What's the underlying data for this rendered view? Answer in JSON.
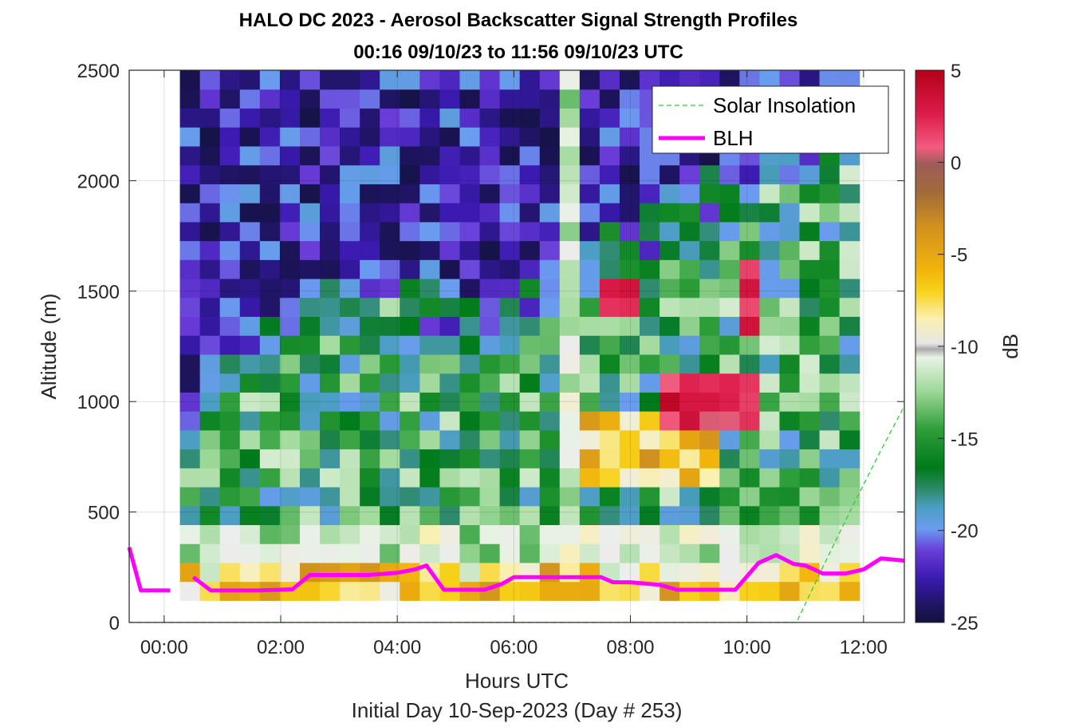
{
  "chart_data": {
    "type": "heatmap",
    "title": "HALO DC 2023 - Aerosol Backscatter Signal Strength Profiles",
    "subtitle": "00:16 09/10/23 to 11:56 09/10/23  UTC",
    "xlabel": "Hours UTC",
    "xlabel2": "Initial Day 10-Sep-2023 (Day # 253)",
    "ylabel": "Altitude (m)",
    "colorbar_label": "dB",
    "xlim": [
      -0.6,
      12.7
    ],
    "ylim": [
      0,
      2500
    ],
    "clim": [
      -25,
      5
    ],
    "x_ticks": [
      0,
      2,
      4,
      6,
      8,
      10,
      12
    ],
    "x_tick_labels": [
      "00:00",
      "02:00",
      "04:00",
      "06:00",
      "08:00",
      "10:00",
      "12:00"
    ],
    "y_ticks": [
      0,
      500,
      1000,
      1500,
      2000,
      2500
    ],
    "y_tick_labels": [
      "0",
      "500",
      "1000",
      "1500",
      "2000",
      "2500"
    ],
    "cbar_ticks": [
      5,
      0,
      -5,
      -10,
      -15,
      -20,
      -25
    ],
    "cbar_tick_labels": [
      "5",
      "0",
      "-5",
      "-10",
      "-15",
      "-20",
      "-25"
    ],
    "grid": true,
    "legend_position": "top-right",
    "legend": [
      "Solar Insolation",
      "BLH"
    ],
    "heatmap_extent": {
      "x_start": 0.27,
      "x_end": 11.93,
      "y_start": 100,
      "y_end": 2500
    },
    "heatmap_cols": 34,
    "heatmap_rows": 28,
    "regions_dB": [
      {
        "name": "upper clean air",
        "approx_dB": -22
      },
      {
        "name": "mixed layer / residual layer",
        "approx_dB": -15
      },
      {
        "name": "surface layer",
        "approx_dB": -7
      },
      {
        "name": "cloud / strong layer 08:30-10:00 near 1000 m",
        "approx_dB": 3
      }
    ],
    "series": [
      {
        "name": "BLH",
        "color": "#ff00ff",
        "points": [
          [
            -0.6,
            340
          ],
          [
            -0.4,
            145
          ],
          [
            0.1,
            145
          ],
          [
            0.5,
            205
          ],
          [
            0.8,
            145
          ],
          [
            1.2,
            145
          ],
          [
            1.6,
            145
          ],
          [
            2.0,
            148
          ],
          [
            2.2,
            150
          ],
          [
            2.5,
            215
          ],
          [
            3.0,
            215
          ],
          [
            3.5,
            215
          ],
          [
            4.0,
            225
          ],
          [
            4.3,
            240
          ],
          [
            4.5,
            258
          ],
          [
            4.8,
            148
          ],
          [
            5.5,
            148
          ],
          [
            5.8,
            175
          ],
          [
            6.0,
            205
          ],
          [
            6.5,
            205
          ],
          [
            7.0,
            205
          ],
          [
            7.5,
            205
          ],
          [
            7.7,
            182
          ],
          [
            8.0,
            182
          ],
          [
            8.5,
            170
          ],
          [
            8.8,
            148
          ],
          [
            9.5,
            148
          ],
          [
            9.8,
            148
          ],
          [
            10.2,
            270
          ],
          [
            10.5,
            305
          ],
          [
            10.8,
            265
          ],
          [
            11.0,
            258
          ],
          [
            11.3,
            222
          ],
          [
            11.7,
            222
          ],
          [
            12.0,
            240
          ],
          [
            12.3,
            290
          ],
          [
            12.7,
            280
          ]
        ]
      },
      {
        "name": "Solar Insolation",
        "color": "#33cc33",
        "points": [
          [
            -0.6,
            0
          ],
          [
            10.85,
            0
          ],
          [
            11.3,
            250
          ],
          [
            11.8,
            520
          ],
          [
            12.3,
            780
          ],
          [
            12.7,
            980
          ]
        ]
      }
    ]
  }
}
